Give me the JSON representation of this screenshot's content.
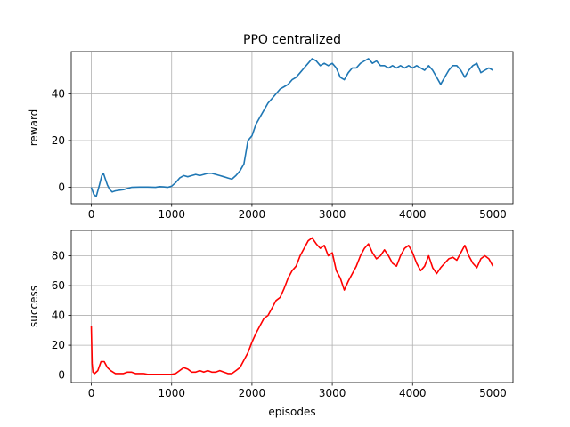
{
  "chart_data": [
    {
      "type": "line",
      "title": "PPO centralized",
      "xlabel": "",
      "ylabel": "reward",
      "xlim": [
        -250,
        5250
      ],
      "ylim": [
        -7,
        58
      ],
      "xticks": [
        0,
        1000,
        2000,
        3000,
        4000,
        5000
      ],
      "yticks": [
        0,
        20,
        40
      ],
      "grid": true,
      "series": [
        {
          "color": "#1f77b4",
          "x": [
            0,
            30,
            60,
            100,
            130,
            150,
            170,
            200,
            230,
            260,
            300,
            400,
            500,
            600,
            700,
            800,
            850,
            900,
            950,
            1000,
            1050,
            1100,
            1150,
            1200,
            1250,
            1300,
            1350,
            1400,
            1450,
            1500,
            1550,
            1600,
            1650,
            1700,
            1750,
            1800,
            1850,
            1900,
            1950,
            2000,
            2050,
            2100,
            2150,
            2200,
            2250,
            2300,
            2350,
            2400,
            2450,
            2500,
            2550,
            2600,
            2650,
            2700,
            2750,
            2800,
            2850,
            2900,
            2950,
            3000,
            3050,
            3100,
            3150,
            3200,
            3250,
            3300,
            3350,
            3400,
            3450,
            3500,
            3550,
            3600,
            3650,
            3700,
            3750,
            3800,
            3850,
            3900,
            3950,
            4000,
            4050,
            4100,
            4150,
            4200,
            4250,
            4300,
            4350,
            4400,
            4450,
            4500,
            4550,
            4600,
            4650,
            4700,
            4750,
            4800,
            4850,
            4900,
            4950,
            5000
          ],
          "y": [
            0,
            -3,
            -4,
            1,
            5,
            6,
            4,
            1,
            -1,
            -2,
            -1.5,
            -1,
            0,
            0.1,
            0.1,
            0,
            0.3,
            0.2,
            0,
            0.5,
            2,
            4,
            5,
            4.5,
            5,
            5.5,
            5,
            5.5,
            6,
            6,
            5.5,
            5,
            4.5,
            4,
            3.5,
            5,
            7,
            10,
            20,
            22,
            27,
            30,
            33,
            36,
            38,
            40,
            42,
            43,
            44,
            46,
            47,
            49,
            51,
            53,
            55,
            54,
            52,
            53,
            52,
            53,
            51,
            47,
            46,
            49,
            51,
            51,
            53,
            54,
            55,
            53,
            54,
            52,
            52,
            51,
            52,
            51,
            52,
            51,
            52,
            51,
            52,
            51,
            50,
            52,
            50,
            47,
            44,
            47,
            50,
            52,
            52,
            50,
            47,
            50,
            52,
            53,
            49,
            50,
            51,
            50
          ]
        }
      ]
    },
    {
      "type": "line",
      "title": "",
      "xlabel": "episodes",
      "ylabel": "success",
      "xlim": [
        -250,
        5250
      ],
      "ylim": [
        -5,
        97
      ],
      "xticks": [
        0,
        1000,
        2000,
        3000,
        4000,
        5000
      ],
      "yticks": [
        0,
        20,
        40,
        60,
        80
      ],
      "grid": true,
      "series": [
        {
          "color": "#ff0000",
          "x": [
            0,
            10,
            20,
            40,
            80,
            120,
            160,
            200,
            240,
            300,
            400,
            450,
            500,
            550,
            600,
            650,
            700,
            800,
            900,
            1000,
            1050,
            1100,
            1150,
            1200,
            1250,
            1300,
            1350,
            1400,
            1450,
            1500,
            1550,
            1600,
            1650,
            1700,
            1750,
            1800,
            1850,
            1900,
            1950,
            2000,
            2050,
            2100,
            2150,
            2200,
            2250,
            2300,
            2350,
            2400,
            2450,
            2500,
            2550,
            2600,
            2650,
            2700,
            2750,
            2800,
            2850,
            2900,
            2950,
            3000,
            3050,
            3100,
            3150,
            3200,
            3250,
            3300,
            3350,
            3400,
            3450,
            3500,
            3550,
            3600,
            3650,
            3700,
            3750,
            3800,
            3850,
            3900,
            3950,
            4000,
            4050,
            4100,
            4150,
            4200,
            4250,
            4300,
            4350,
            4400,
            4450,
            4500,
            4550,
            4600,
            4650,
            4700,
            4750,
            4800,
            4850,
            4900,
            4950,
            5000
          ],
          "y": [
            33,
            8,
            2,
            1,
            3,
            9,
            9,
            5,
            3,
            1,
            1,
            2,
            2,
            1,
            1,
            1,
            0.5,
            0.5,
            0.5,
            0.5,
            1,
            3,
            5,
            4,
            2,
            2,
            3,
            2,
            3,
            2,
            2,
            3,
            2,
            1,
            1,
            3,
            5,
            10,
            15,
            22,
            28,
            33,
            38,
            40,
            45,
            50,
            52,
            58,
            65,
            70,
            73,
            80,
            85,
            90,
            92,
            88,
            85,
            87,
            80,
            82,
            70,
            65,
            57,
            63,
            68,
            73,
            80,
            85,
            88,
            82,
            78,
            80,
            84,
            80,
            75,
            73,
            80,
            85,
            87,
            82,
            75,
            70,
            73,
            80,
            72,
            68,
            72,
            75,
            78,
            79,
            77,
            82,
            87,
            80,
            75,
            72,
            78,
            80,
            78,
            73
          ]
        }
      ]
    }
  ]
}
